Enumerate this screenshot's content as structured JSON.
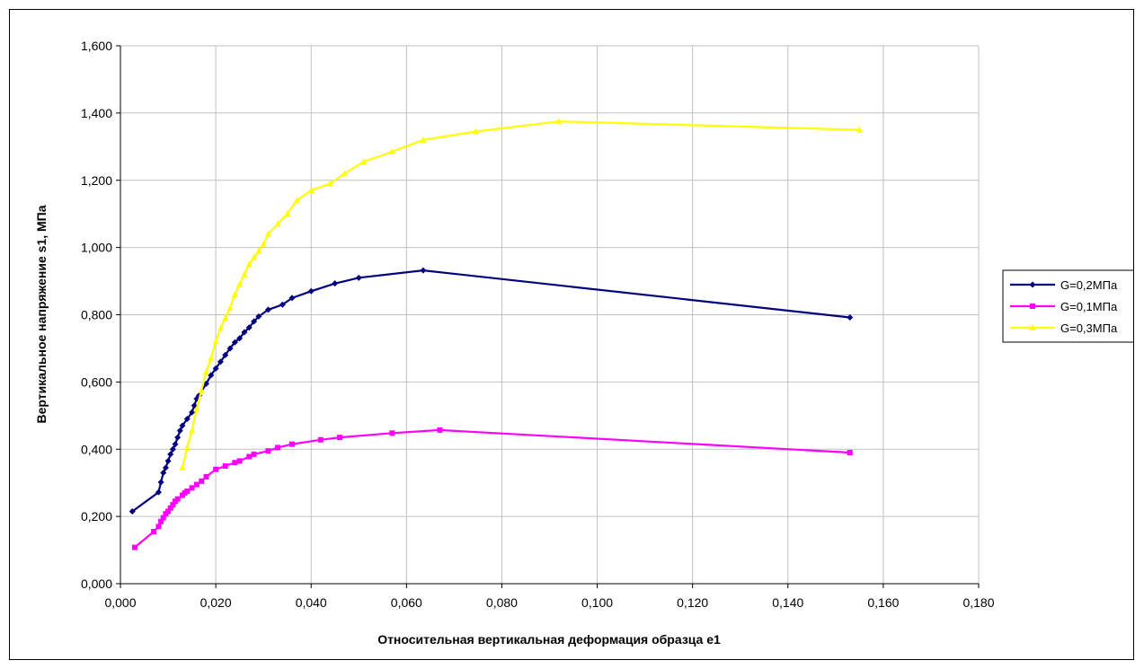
{
  "chart_data": {
    "type": "line",
    "title": "",
    "xlabel": "Относительная вертикальная деформация образца e1",
    "ylabel": "Вертикальное напряжение s1, МПа",
    "xlim": [
      0,
      0.18
    ],
    "ylim": [
      0,
      1.6
    ],
    "x_ticks": [
      "0,000",
      "0,020",
      "0,040",
      "0,060",
      "0,080",
      "0,100",
      "0,120",
      "0,140",
      "0,160",
      "0,180"
    ],
    "y_ticks": [
      "0,000",
      "0,200",
      "0,400",
      "0,600",
      "0,800",
      "1,000",
      "1,200",
      "1,400",
      "1,600"
    ],
    "grid": true,
    "plot_background": "#ffffff",
    "grid_color": "#c0c0c0",
    "legend_position": "right",
    "series": [
      {
        "name": "G=0,2МПа",
        "color": "#000080",
        "marker": "diamond",
        "x": [
          0.0025,
          0.008,
          0.0085,
          0.009,
          0.0095,
          0.01,
          0.0105,
          0.011,
          0.0115,
          0.012,
          0.0125,
          0.013,
          0.014,
          0.015,
          0.0155,
          0.016,
          0.0165,
          0.018,
          0.019,
          0.02,
          0.021,
          0.022,
          0.023,
          0.024,
          0.025,
          0.026,
          0.027,
          0.028,
          0.029,
          0.031,
          0.034,
          0.036,
          0.04,
          0.045,
          0.05,
          0.0635,
          0.153
        ],
        "y": [
          0.215,
          0.272,
          0.302,
          0.33,
          0.345,
          0.365,
          0.385,
          0.4,
          0.415,
          0.435,
          0.455,
          0.47,
          0.49,
          0.51,
          0.53,
          0.55,
          0.56,
          0.595,
          0.62,
          0.64,
          0.66,
          0.68,
          0.7,
          0.718,
          0.73,
          0.748,
          0.762,
          0.78,
          0.795,
          0.815,
          0.83,
          0.85,
          0.87,
          0.893,
          0.91,
          0.932,
          0.792
        ]
      },
      {
        "name": "G=0,1МПа",
        "color": "#ff00ff",
        "marker": "square",
        "x": [
          0.003,
          0.007,
          0.008,
          0.0085,
          0.009,
          0.0095,
          0.01,
          0.0105,
          0.011,
          0.0115,
          0.012,
          0.013,
          0.0135,
          0.014,
          0.015,
          0.016,
          0.017,
          0.018,
          0.02,
          0.022,
          0.024,
          0.025,
          0.027,
          0.028,
          0.031,
          0.033,
          0.036,
          0.042,
          0.046,
          0.057,
          0.067,
          0.153
        ],
        "y": [
          0.108,
          0.155,
          0.17,
          0.185,
          0.196,
          0.208,
          0.215,
          0.225,
          0.235,
          0.245,
          0.252,
          0.263,
          0.27,
          0.275,
          0.285,
          0.295,
          0.305,
          0.318,
          0.34,
          0.35,
          0.36,
          0.365,
          0.378,
          0.385,
          0.395,
          0.405,
          0.415,
          0.428,
          0.435,
          0.448,
          0.457,
          0.39
        ]
      },
      {
        "name": "G=0,3МПа",
        "color": "#ffff00",
        "marker": "triangle",
        "x": [
          0.013,
          0.014,
          0.015,
          0.016,
          0.017,
          0.018,
          0.019,
          0.02,
          0.021,
          0.022,
          0.023,
          0.024,
          0.025,
          0.026,
          0.027,
          0.028,
          0.029,
          0.03,
          0.031,
          0.033,
          0.035,
          0.037,
          0.04,
          0.044,
          0.047,
          0.051,
          0.057,
          0.0635,
          0.0745,
          0.092,
          0.155
        ],
        "y": [
          0.345,
          0.405,
          0.455,
          0.52,
          0.575,
          0.63,
          0.67,
          0.72,
          0.76,
          0.79,
          0.82,
          0.86,
          0.89,
          0.92,
          0.95,
          0.97,
          0.99,
          1.01,
          1.04,
          1.07,
          1.1,
          1.14,
          1.17,
          1.19,
          1.22,
          1.255,
          1.285,
          1.32,
          1.345,
          1.375,
          1.35
        ]
      }
    ]
  }
}
